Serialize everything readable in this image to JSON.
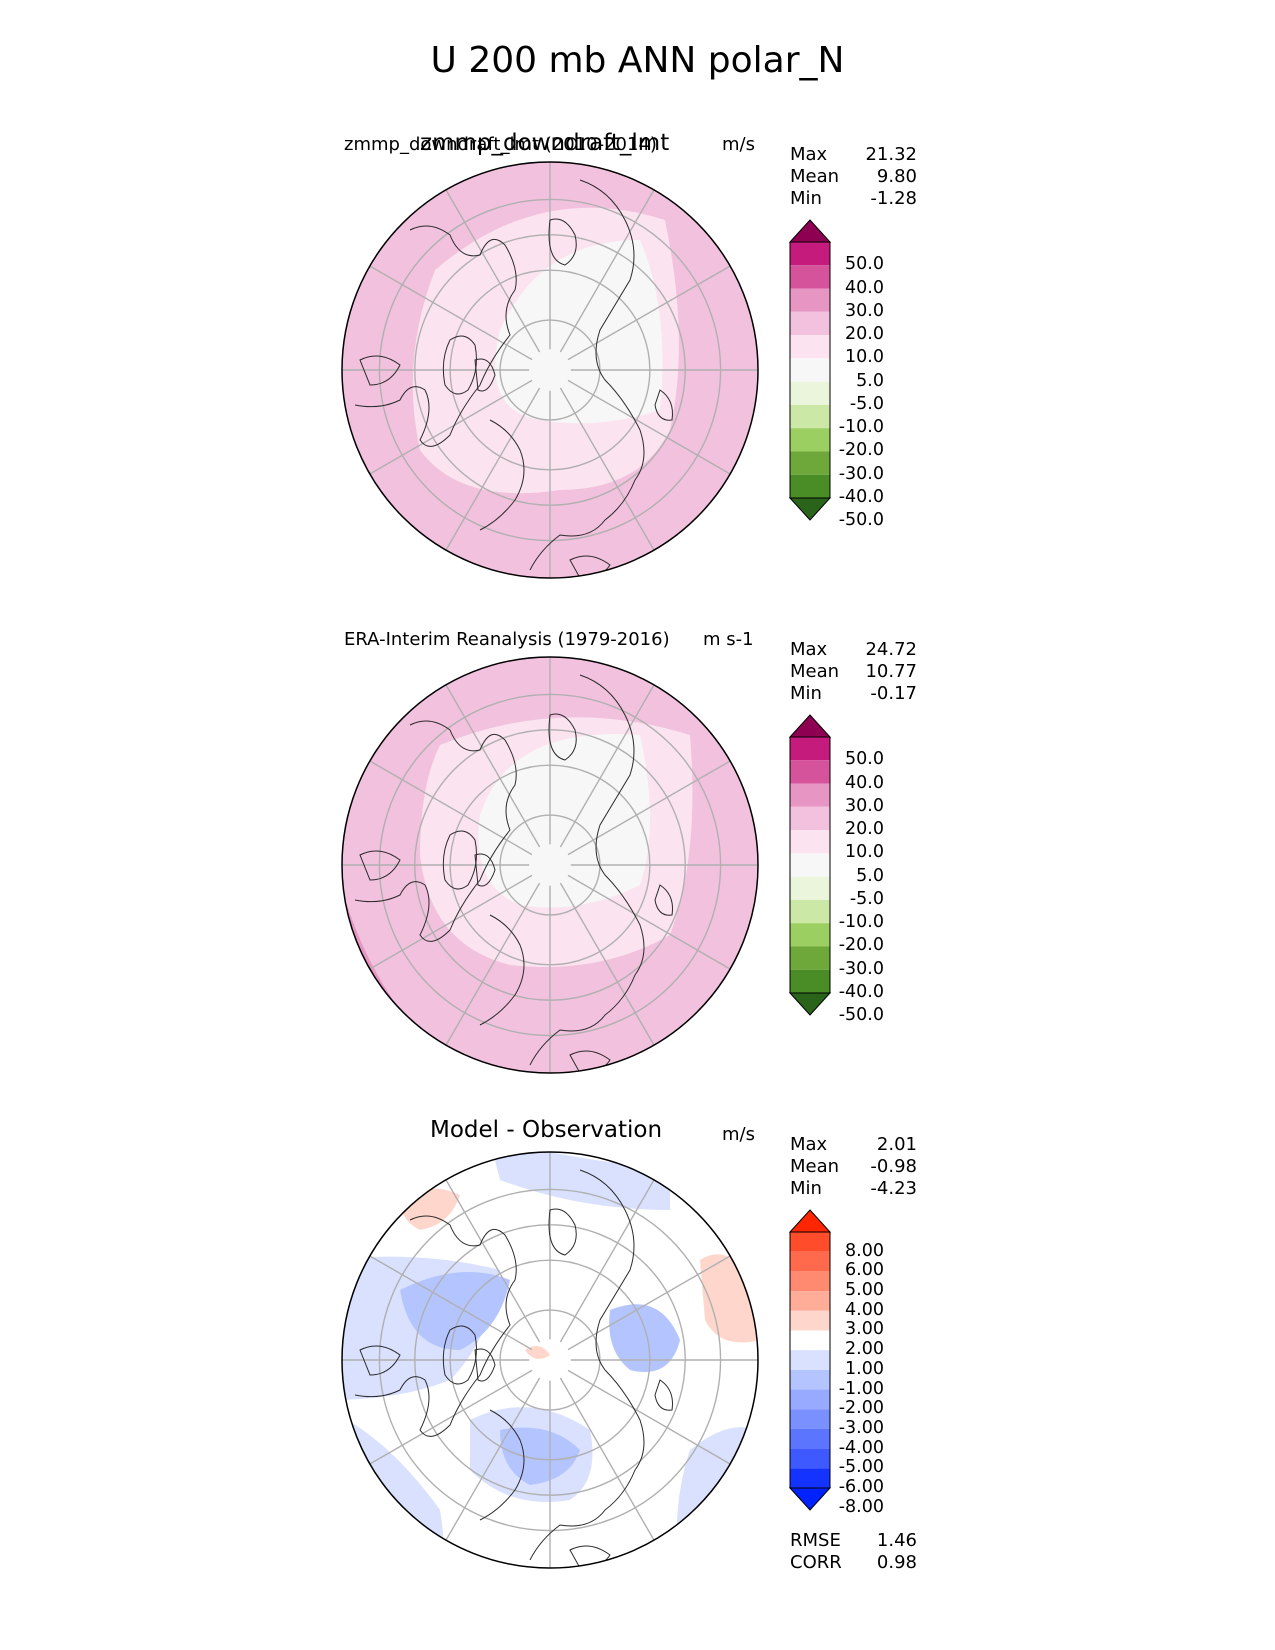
{
  "title": "U 200 mb ANN polar_N",
  "panels": [
    {
      "id": "test",
      "center_title": "zmmp_downdraft_lmt",
      "left_title": "zmmp_downdraft_lmt (2010-2014)",
      "units": "m/s",
      "stats": [
        {
          "label": "Max",
          "value": "21.32"
        },
        {
          "label": "Mean",
          "value": "9.80"
        },
        {
          "label": "Min",
          "value": "-1.28"
        }
      ],
      "colorbar_ticks": [
        "50.0",
        "40.0",
        "30.0",
        "20.0",
        "10.0",
        "5.0",
        "-5.0",
        "-10.0",
        "-20.0",
        "-30.0",
        "-40.0",
        "-50.0"
      ],
      "colorbar_colors": [
        "#8e0152",
        "#c51b7d",
        "#de77ae",
        "#f1b6da",
        "#fde0ef",
        "#f7f7f7",
        "#f7f7f7",
        "#e6f5d0",
        "#b8e186",
        "#7fbc41",
        "#4d9221",
        "#276419"
      ],
      "colorbar_colors_full": [
        "#8e0152",
        "#c51b7d",
        "#d5539a",
        "#e796c4",
        "#f2c1de",
        "#fbe3ef",
        "#f7f7f7",
        "#eaf5dc",
        "#cbe8a6",
        "#9ccf61",
        "#6fa83a",
        "#4a8c25",
        "#2a641b"
      ]
    },
    {
      "id": "ref",
      "center_title": "",
      "left_title": "ERA-Interim Reanalysis (1979-2016)",
      "units": "m s-1",
      "stats": [
        {
          "label": "Max",
          "value": "24.72"
        },
        {
          "label": "Mean",
          "value": "10.77"
        },
        {
          "label": "Min",
          "value": "-0.17"
        }
      ],
      "colorbar_ticks": [
        "50.0",
        "40.0",
        "30.0",
        "20.0",
        "10.0",
        "5.0",
        "-5.0",
        "-10.0",
        "-20.0",
        "-30.0",
        "-40.0",
        "-50.0"
      ]
    },
    {
      "id": "diff",
      "center_title": "Model - Observation",
      "left_title": "",
      "units": "m/s",
      "stats": [
        {
          "label": "Max",
          "value": "2.01"
        },
        {
          "label": "Mean",
          "value": "-0.98"
        },
        {
          "label": "Min",
          "value": "-4.23"
        }
      ],
      "colorbar_ticks": [
        "8.00",
        "6.00",
        "5.00",
        "4.00",
        "3.00",
        "2.00",
        "1.00",
        "-1.00",
        "-2.00",
        "-3.00",
        "-4.00",
        "-5.00",
        "-6.00",
        "-8.00"
      ],
      "colorbar_colors_full": [
        "#ff2600",
        "#ff4d2b",
        "#ff6a4d",
        "#ff8a70",
        "#ffac98",
        "#ffd6cc",
        "#ffffff",
        "#d9e1ff",
        "#b4c4ff",
        "#97aaff",
        "#7a90ff",
        "#5c75ff",
        "#3d59ff",
        "#1433ff",
        "#0022ff"
      ],
      "extra_stats": [
        {
          "label": "RMSE",
          "value": "1.46"
        },
        {
          "label": "CORR",
          "value": "0.98"
        }
      ]
    }
  ]
}
